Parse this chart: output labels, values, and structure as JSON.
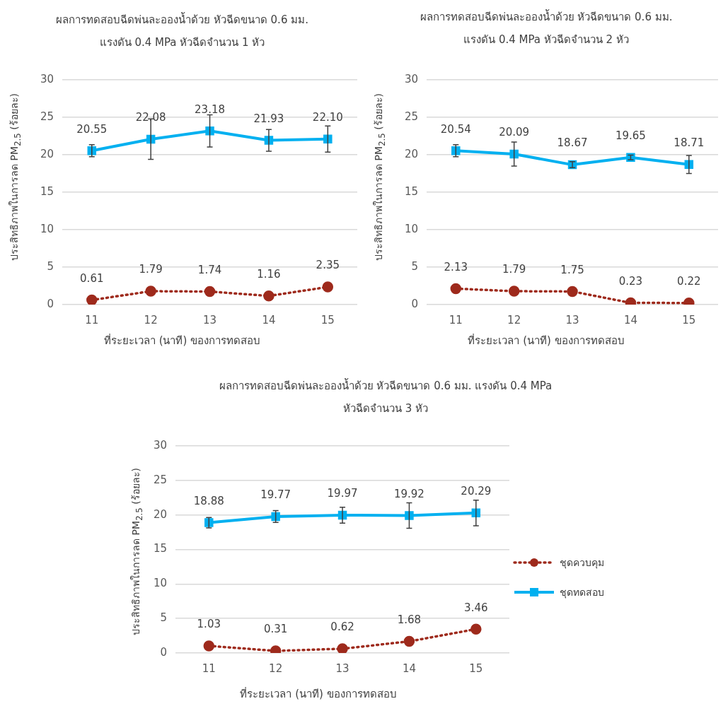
{
  "chart_data": [
    {
      "type": "line",
      "title": "ผลการทดสอบฉีดพ่นละอองน้ำด้วย หัวฉีดขนาด 0.6 มม.\nแรงดัน 0.4 MPa หัวฉีดจำนวน 1 หัว",
      "xlabel": "ที่ระยะเวลา (นาที) ของการทดสอบ",
      "ylabel": "ประสิทธิภาพในการลด PM$_{2.5}$ (ร้อยละ)",
      "categories": [
        "11",
        "12",
        "13",
        "14",
        "15"
      ],
      "ylim": [
        0,
        30
      ],
      "yticks": [
        0,
        5,
        10,
        15,
        20,
        25,
        30
      ],
      "grid": "y",
      "data_labels": true,
      "series": [
        {
          "color": "#9e2a1c",
          "line_style": "dotted",
          "marker": "circle",
          "values": [
            0.61,
            1.79,
            1.74,
            1.16,
            2.35
          ]
        },
        {
          "color": "#00b0f0",
          "line_style": "solid",
          "marker": "square",
          "values": [
            20.55,
            22.08,
            23.18,
            21.93,
            22.1
          ],
          "value_labels": [
            "20.55",
            "22.08",
            "23.18",
            "21.93",
            "22.10"
          ],
          "errors": [
            0.8,
            2.7,
            2.15,
            1.45,
            1.75
          ]
        }
      ]
    },
    {
      "type": "line",
      "title": "ผลการทดสอบฉีดพ่นละอองน้ำด้วย หัวฉีดขนาด 0.6 มม.\nแรงดัน 0.4 MPa หัวฉีดจำนวน 2 หัว",
      "xlabel": "ที่ระยะเวลา (นาที) ของการทดสอบ",
      "ylabel": "ประสิทธิภาพในการลด PM$_{2.5}$ (ร้อยละ)",
      "categories": [
        "11",
        "12",
        "13",
        "14",
        "15"
      ],
      "ylim": [
        0,
        30
      ],
      "yticks": [
        0,
        5,
        10,
        15,
        20,
        25,
        30
      ],
      "grid": "y",
      "data_labels": true,
      "series": [
        {
          "color": "#9e2a1c",
          "line_style": "dotted",
          "marker": "circle",
          "values": [
            2.13,
            1.79,
            1.75,
            0.23,
            0.22
          ]
        },
        {
          "color": "#00b0f0",
          "line_style": "solid",
          "marker": "square",
          "values": [
            20.54,
            20.09,
            18.67,
            19.65,
            18.71
          ],
          "errors": [
            0.8,
            1.6,
            0.4,
            0.3,
            1.2
          ]
        }
      ]
    },
    {
      "type": "line",
      "title": "ผลการทดสอบฉีดพ่นละอองน้ำด้วย หัวฉีดขนาด 0.6 มม. แรงดัน 0.4 MPa\nหัวฉีดจำนวน 3 หัว",
      "xlabel": "ที่ระยะเวลา (นาที) ของการทดสอบ",
      "ylabel": "ประสิทธิภาพในการลด PM$_{2.5}$ (ร้อยละ)",
      "categories": [
        "11",
        "12",
        "13",
        "14",
        "15"
      ],
      "ylim": [
        0,
        30
      ],
      "yticks": [
        0,
        5,
        10,
        15,
        20,
        25,
        30
      ],
      "grid": "y",
      "data_labels": true,
      "legend": "right",
      "series": [
        {
          "name": "ชุดควบคุม",
          "color": "#9e2a1c",
          "line_style": "dotted",
          "marker": "circle",
          "values": [
            1.03,
            0.31,
            0.62,
            1.68,
            3.46
          ]
        },
        {
          "name": "ชุดทดสอบ",
          "color": "#00b0f0",
          "line_style": "solid",
          "marker": "square",
          "values": [
            18.88,
            19.77,
            19.97,
            19.92,
            20.29
          ],
          "errors": [
            0.75,
            0.85,
            1.15,
            1.85,
            1.85
          ]
        }
      ]
    }
  ]
}
